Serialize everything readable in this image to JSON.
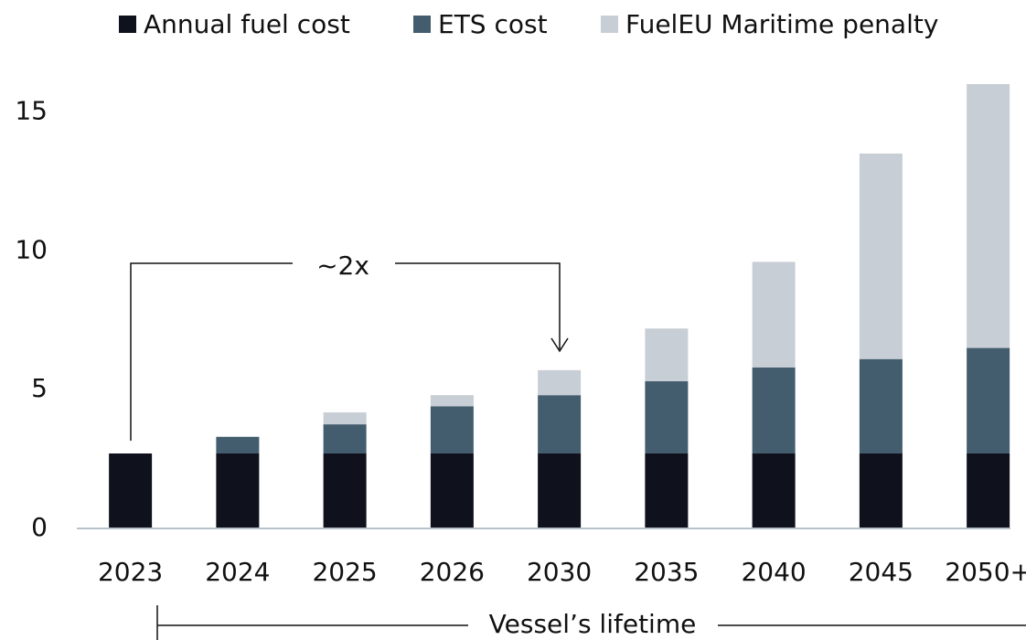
{
  "chart_data": {
    "type": "stacked_bar",
    "categories": [
      "2023",
      "2024",
      "2025",
      "2026",
      "2030",
      "2035",
      "2040",
      "2045",
      "2050+"
    ],
    "series": [
      {
        "name": "Annual fuel cost",
        "color": "#0f111c",
        "values": [
          2.7,
          2.7,
          2.7,
          2.7,
          2.7,
          2.7,
          2.7,
          2.7,
          2.7
        ]
      },
      {
        "name": "ETS cost",
        "color": "#435d6f",
        "values": [
          0,
          0.6,
          1.05,
          1.7,
          2.1,
          2.6,
          3.1,
          3.4,
          3.8
        ]
      },
      {
        "name": "FuelEU Maritime penalty",
        "color": "#c8ced5",
        "values": [
          0,
          0,
          0.43,
          0.4,
          0.9,
          1.9,
          3.8,
          7.4,
          9.5
        ]
      }
    ],
    "ylim": [
      0,
      16
    ],
    "yticks": [
      0,
      5,
      10,
      15
    ],
    "grid": false,
    "legend": "top",
    "annotations": [
      "~2x",
      "Vessel’s lifetime"
    ]
  }
}
